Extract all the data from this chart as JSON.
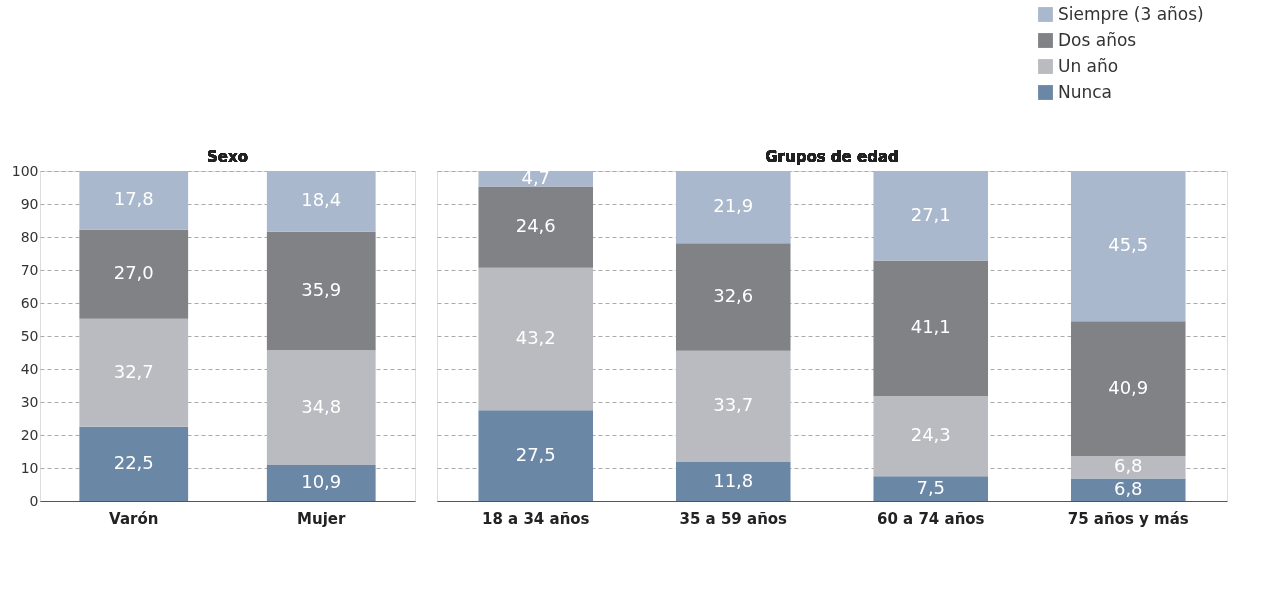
{
  "chart_data": [
    {
      "type": "bar",
      "stacked": true,
      "title": "Sexo",
      "categories": [
        "Varón",
        "Mujer"
      ],
      "ylim": [
        0,
        100
      ],
      "yticks": [
        0,
        10,
        20,
        30,
        40,
        50,
        60,
        70,
        80,
        90,
        100
      ],
      "grid": "y",
      "legend": false,
      "series": [
        {
          "color": "#6b87a6",
          "values": [
            22.5,
            10.9
          ],
          "value_labels": [
            "22,5",
            "10,9"
          ]
        },
        {
          "color": "#b9bbc0",
          "values": [
            32.7,
            34.8
          ],
          "value_labels": [
            "32,7",
            "34,8"
          ]
        },
        {
          "color": "#818286",
          "values": [
            27.0,
            35.9
          ],
          "value_labels": [
            "27,0",
            "35,9"
          ]
        },
        {
          "color": "#a9b8cc",
          "values": [
            17.8,
            18.4
          ],
          "value_labels": [
            "17,8",
            "18,4"
          ]
        }
      ]
    },
    {
      "type": "bar",
      "stacked": true,
      "title": "Grupos de edad",
      "categories": [
        "18 a 34 años",
        "35 a 59 años",
        "60 a 74 años",
        "75 años y más"
      ],
      "ylim": [
        0,
        100
      ],
      "yticks": [
        0,
        10,
        20,
        30,
        40,
        50,
        60,
        70,
        80,
        90,
        100
      ],
      "grid": "y",
      "legend": "top right",
      "tick_labels": "x",
      "series": [
        {
          "name": "Nunca",
          "color": "#6b87a6",
          "values": [
            27.5,
            11.8,
            7.5,
            6.8
          ],
          "value_labels": [
            "27,5",
            "11,8",
            "7,5",
            "6,8"
          ]
        },
        {
          "name": "Un año",
          "color": "#b9bbc0",
          "values": [
            43.2,
            33.7,
            24.3,
            6.8
          ],
          "value_labels": [
            "43,2",
            "33,7",
            "24,3",
            "6,8"
          ]
        },
        {
          "name": "Dos años",
          "color": "#818286",
          "values": [
            24.6,
            32.6,
            41.1,
            40.9
          ],
          "value_labels": [
            "24,6",
            "32,6",
            "41,1",
            "40,9"
          ]
        },
        {
          "name": "Siempre (3 años)",
          "color": "#a9b8cc",
          "values": [
            4.7,
            21.9,
            27.1,
            45.5
          ],
          "value_labels": [
            "4,7",
            "21,9",
            "27,1",
            "45,5"
          ]
        }
      ]
    }
  ]
}
